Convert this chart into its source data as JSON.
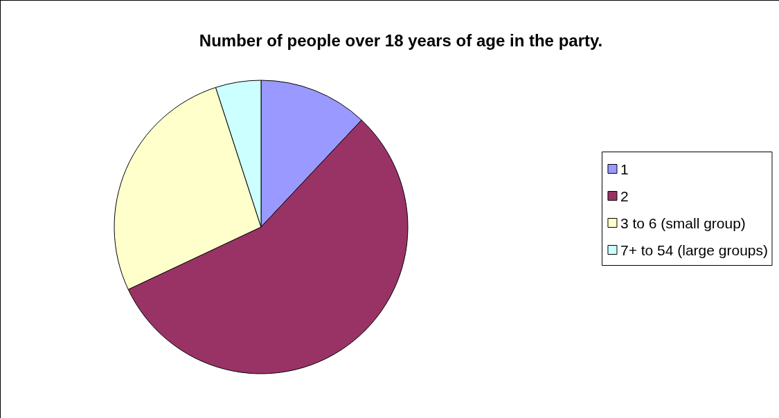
{
  "chart_data": {
    "type": "pie",
    "title": "Number of people over 18 years of age in the party.",
    "categories": [
      "1",
      "2",
      "3 to 6 (small group)",
      "7+ to 54 (large groups)"
    ],
    "values": [
      12,
      56,
      27,
      5
    ],
    "colors": [
      "#9999ff",
      "#993366",
      "#ffffcc",
      "#ccffff"
    ],
    "legend": "right"
  }
}
